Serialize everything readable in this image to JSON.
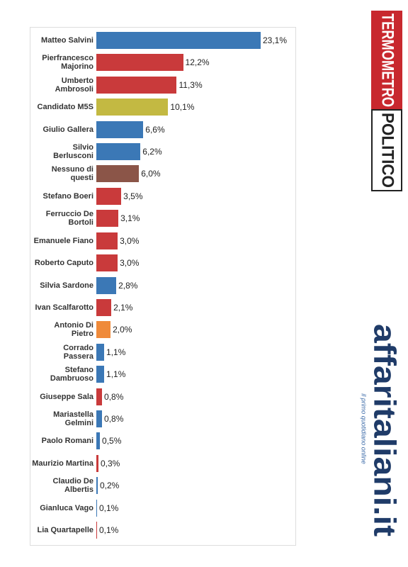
{
  "chart_data": {
    "type": "barh",
    "categories": [
      "Matteo Salvini",
      "Pierfrancesco Majorino",
      "Umberto Ambrosoli",
      "Candidato M5S",
      "Giulio Gallera",
      "Silvio Berlusconi",
      "Nessuno di questi",
      "Stefano Boeri",
      "Ferruccio De Bortoli",
      "Emanuele Fiano",
      "Roberto Caputo",
      "Silvia Sardone",
      "Ivan Scalfarotto",
      "Antonio Di Pietro",
      "Corrado Passera",
      "Stefano Dambruoso",
      "Giuseppe Sala",
      "Mariastella Gelmini",
      "Paolo Romani",
      "Maurizio Martina",
      "Claudio De Albertis",
      "Gianluca Vago",
      "Lia Quartapelle"
    ],
    "values": [
      23.1,
      12.2,
      11.3,
      10.1,
      6.6,
      6.2,
      6.0,
      3.5,
      3.1,
      3.0,
      3.0,
      2.8,
      2.1,
      2.0,
      1.1,
      1.1,
      0.8,
      0.8,
      0.5,
      0.3,
      0.2,
      0.1,
      0.1
    ],
    "value_labels": [
      "23,1%",
      "12,2%",
      "11,3%",
      "10,1%",
      "6,6%",
      "6,2%",
      "6,0%",
      "3,5%",
      "3,1%",
      "3,0%",
      "3,0%",
      "2,8%",
      "2,1%",
      "2,0%",
      "1,1%",
      "1,1%",
      "0,8%",
      "0,8%",
      "0,5%",
      "0,3%",
      "0,2%",
      "0,1%",
      "0,1%"
    ],
    "colors": [
      "#3b78b6",
      "#c93a3b",
      "#c93a3b",
      "#c3b942",
      "#3b78b6",
      "#3b78b6",
      "#8b5548",
      "#c93a3b",
      "#c93a3b",
      "#c93a3b",
      "#c93a3b",
      "#3b78b6",
      "#c93a3b",
      "#ef8a3a",
      "#3b78b6",
      "#3b78b6",
      "#c93a3b",
      "#3b78b6",
      "#3b78b6",
      "#c93a3b",
      "#3b78b6",
      "#3b78b6",
      "#c93a3b"
    ]
  },
  "logos": {
    "termometro_top": "TERMOMETRO",
    "termometro_bottom": "POLITICO",
    "affaritaliani": "affaritaliani.it",
    "tagline": "il primo quotidiano online"
  }
}
